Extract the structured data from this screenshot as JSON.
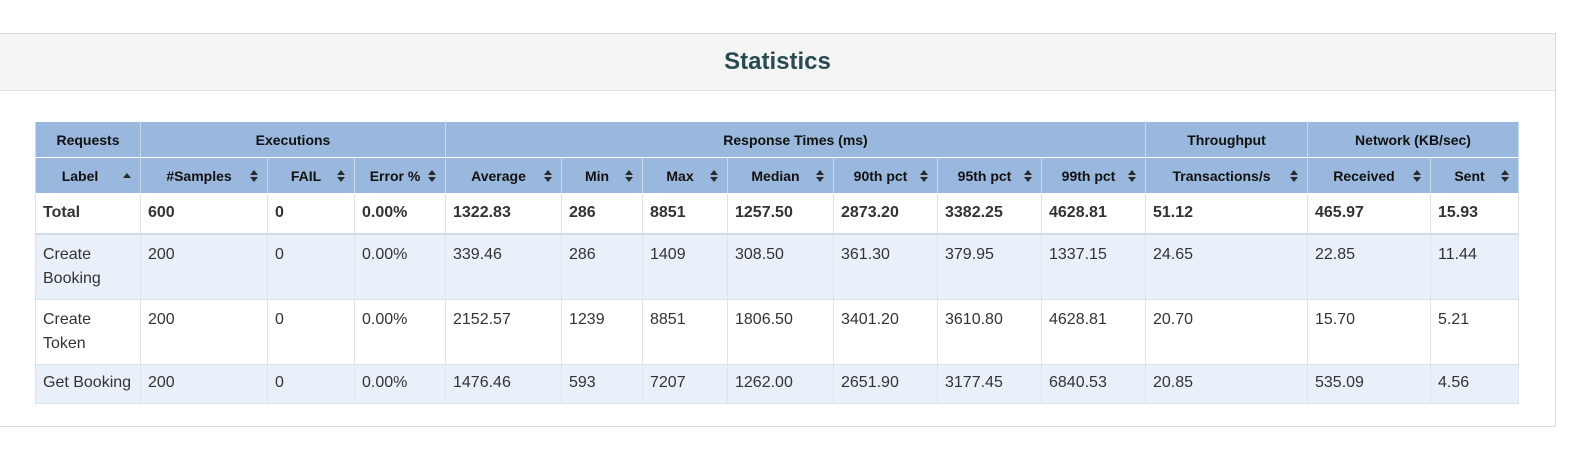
{
  "title": "Statistics",
  "group_headers": [
    "Requests",
    "Executions",
    "Response Times (ms)",
    "Throughput",
    "Network (KB/sec)"
  ],
  "columns": [
    "Label",
    "#Samples",
    "FAIL",
    "Error %",
    "Average",
    "Min",
    "Max",
    "Median",
    "90th pct",
    "95th pct",
    "99th pct",
    "Transactions/s",
    "Received",
    "Sent"
  ],
  "sort": {
    "column": "Label",
    "direction": "ascending"
  },
  "total": [
    "Total",
    "600",
    "0",
    "0.00%",
    "1322.83",
    "286",
    "8851",
    "1257.50",
    "2873.20",
    "3382.25",
    "4628.81",
    "51.12",
    "465.97",
    "15.93"
  ],
  "rows": [
    [
      "Create Booking",
      "200",
      "0",
      "0.00%",
      "339.46",
      "286",
      "1409",
      "308.50",
      "361.30",
      "379.95",
      "1337.15",
      "24.65",
      "22.85",
      "11.44"
    ],
    [
      "Create Token",
      "200",
      "0",
      "0.00%",
      "2152.57",
      "1239",
      "8851",
      "1806.50",
      "3401.20",
      "3610.80",
      "4628.81",
      "20.70",
      "15.70",
      "5.21"
    ],
    [
      "Get Booking",
      "200",
      "0",
      "0.00%",
      "1476.46",
      "593",
      "7207",
      "1262.00",
      "2651.90",
      "3177.45",
      "6840.53",
      "20.85",
      "535.09",
      "4.56"
    ]
  ],
  "colors": {
    "header_bg": "#9ab8dd",
    "alt_row_bg": "#e9f0f9",
    "title": "#2a4a52"
  }
}
